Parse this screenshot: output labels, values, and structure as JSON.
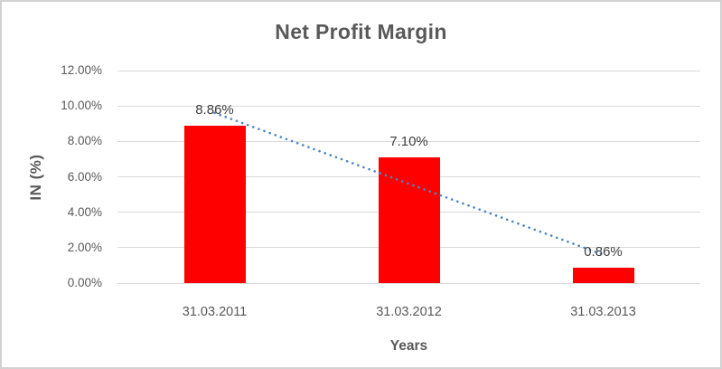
{
  "chart_data": {
    "type": "bar",
    "title": "Net Profit Margin",
    "xlabel": "Years",
    "ylabel": "IN (%)",
    "categories": [
      "31.03.2011",
      "31.03.2012",
      "31.03.2013"
    ],
    "values": [
      8.86,
      7.1,
      0.86
    ],
    "data_labels": [
      "8.86%",
      "7.10%",
      "0.86%"
    ],
    "ylim": [
      0,
      12
    ],
    "yticks": [
      {
        "value": 0,
        "label": "0.00%"
      },
      {
        "value": 2,
        "label": "2.00%"
      },
      {
        "value": 4,
        "label": "4.00%"
      },
      {
        "value": 6,
        "label": "6.00%"
      },
      {
        "value": 8,
        "label": "8.00%"
      },
      {
        "value": 10,
        "label": "10.00%"
      },
      {
        "value": 12,
        "label": "12.00%"
      }
    ],
    "grid": true,
    "legend_position": "none",
    "bar_color": "#FF0000",
    "trendline": {
      "type": "linear",
      "style": "dotted",
      "color": "#4A86C8"
    },
    "colors": {
      "title_text": "#595959",
      "axis_text": "#595959",
      "data_label_text": "#3F3F3F",
      "gridline": "#D9D9D9",
      "plot_background": "#FFFFFF",
      "frame_border": "#D2D2D2"
    }
  }
}
